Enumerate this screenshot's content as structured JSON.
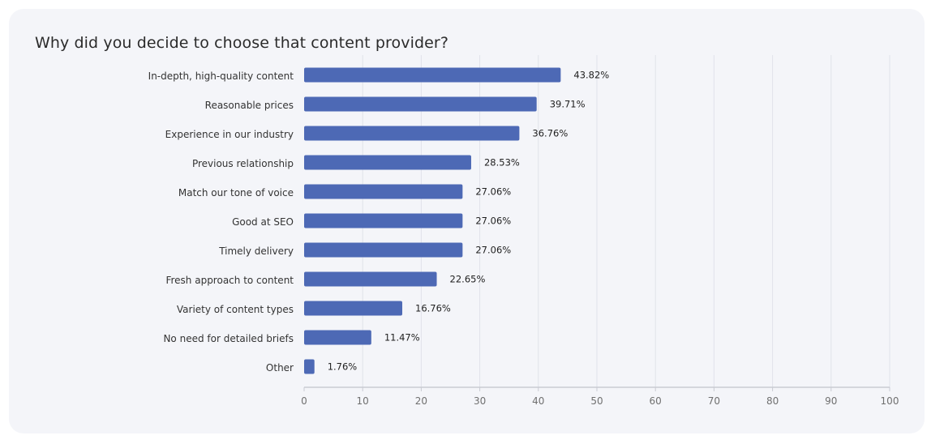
{
  "colors": {
    "bar": "#4d69b5",
    "grid": "#e1e3ea",
    "axis": "#c9cbd2"
  },
  "chart_data": {
    "type": "bar",
    "orientation": "horizontal",
    "title": "Why did you decide to choose that content provider?",
    "xlabel": "",
    "ylabel": "",
    "xlim": [
      0,
      100
    ],
    "ticks": [
      0,
      10,
      20,
      30,
      40,
      50,
      60,
      70,
      80,
      90,
      100
    ],
    "categories": [
      "In-depth, high-quality content",
      "Reasonable prices",
      "Experience in our industry",
      "Previous relationship",
      "Match our tone of voice",
      "Good at SEO",
      "Timely delivery",
      "Fresh approach to content",
      "Variety of content types",
      "No need for detailed briefs",
      "Other"
    ],
    "values": [
      43.82,
      39.71,
      36.76,
      28.53,
      27.06,
      27.06,
      27.06,
      22.65,
      16.76,
      11.47,
      1.76
    ],
    "value_labels": [
      "43.82%",
      "39.71%",
      "36.76%",
      "28.53%",
      "27.06%",
      "27.06%",
      "27.06%",
      "22.65%",
      "16.76%",
      "11.47%",
      "1.76%"
    ],
    "grid": true
  }
}
